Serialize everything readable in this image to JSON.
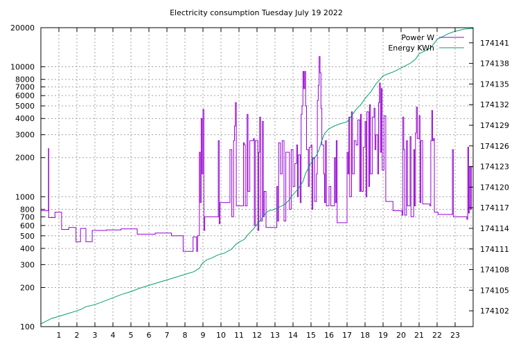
{
  "chart_data": {
    "type": "line",
    "title": "Electricity consumption Tuesday July 19 2022",
    "xlabel": "",
    "ylabel": "",
    "y2label": "",
    "grid": true,
    "legend_position": "top-right",
    "x_range": [
      0,
      24
    ],
    "x_ticks": [
      1,
      2,
      3,
      4,
      5,
      6,
      7,
      8,
      9,
      10,
      11,
      12,
      13,
      14,
      15,
      16,
      17,
      18,
      19,
      20,
      21,
      22,
      23
    ],
    "y_scale": "log",
    "y_range": [
      100,
      20000
    ],
    "y_ticks": [
      100,
      200,
      300,
      400,
      500,
      600,
      700,
      800,
      1000,
      2000,
      3000,
      4000,
      5000,
      6000,
      7000,
      8000,
      10000,
      20000
    ],
    "y2_range": [
      174099.7,
      174143.2
    ],
    "y2_ticks": [
      174102,
      174105,
      174108,
      174111,
      174114,
      174117,
      174120,
      174123,
      174126,
      174129,
      174132,
      174135,
      174138,
      174141
    ],
    "series": [
      {
        "name": "Power W",
        "color": "#9400d3",
        "axis": "y",
        "points": [
          [
            0.0,
            780
          ],
          [
            0.4,
            780
          ],
          [
            0.42,
            2350
          ],
          [
            0.44,
            690
          ],
          [
            0.75,
            690
          ],
          [
            0.78,
            760
          ],
          [
            1.1,
            760
          ],
          [
            1.15,
            560
          ],
          [
            1.5,
            560
          ],
          [
            1.55,
            580
          ],
          [
            1.9,
            580
          ],
          [
            1.95,
            450
          ],
          [
            2.15,
            450
          ],
          [
            2.2,
            570
          ],
          [
            2.45,
            570
          ],
          [
            2.5,
            450
          ],
          [
            2.8,
            450
          ],
          [
            2.85,
            550
          ],
          [
            3.6,
            550
          ],
          [
            3.65,
            555
          ],
          [
            4.4,
            555
          ],
          [
            4.45,
            565
          ],
          [
            5.3,
            565
          ],
          [
            5.35,
            515
          ],
          [
            6.3,
            515
          ],
          [
            6.35,
            525
          ],
          [
            7.2,
            525
          ],
          [
            7.25,
            500
          ],
          [
            7.85,
            500
          ],
          [
            7.9,
            380
          ],
          [
            8.4,
            380
          ],
          [
            8.45,
            490
          ],
          [
            8.6,
            490
          ],
          [
            8.65,
            380
          ],
          [
            8.7,
            500
          ],
          [
            8.8,
            2200
          ],
          [
            8.85,
            900
          ],
          [
            8.9,
            4000
          ],
          [
            8.95,
            1500
          ],
          [
            9.0,
            4700
          ],
          [
            9.05,
            550
          ],
          [
            9.1,
            700
          ],
          [
            9.8,
            700
          ],
          [
            9.85,
            2700
          ],
          [
            9.9,
            620
          ],
          [
            9.95,
            900
          ],
          [
            10.4,
            900
          ],
          [
            10.5,
            2300
          ],
          [
            10.6,
            700
          ],
          [
            10.7,
            2700
          ],
          [
            10.75,
            3500
          ],
          [
            10.8,
            5300
          ],
          [
            10.85,
            850
          ],
          [
            11.2,
            850
          ],
          [
            11.25,
            2600
          ],
          [
            11.3,
            2500
          ],
          [
            11.35,
            850
          ],
          [
            11.45,
            4300
          ],
          [
            11.5,
            1100
          ],
          [
            11.6,
            2700
          ],
          [
            11.8,
            2800
          ],
          [
            11.85,
            600
          ],
          [
            11.9,
            2700
          ],
          [
            12.0,
            2700
          ],
          [
            12.05,
            550
          ],
          [
            12.1,
            2200
          ],
          [
            12.15,
            4100
          ],
          [
            12.2,
            650
          ],
          [
            12.3,
            3800
          ],
          [
            12.35,
            700
          ],
          [
            12.4,
            1100
          ],
          [
            12.5,
            580
          ],
          [
            13.05,
            580
          ],
          [
            13.1,
            1200
          ],
          [
            13.15,
            650
          ],
          [
            13.2,
            2600
          ],
          [
            13.3,
            1500
          ],
          [
            13.4,
            2700
          ],
          [
            13.5,
            650
          ],
          [
            13.6,
            2200
          ],
          [
            13.7,
            2200
          ],
          [
            13.8,
            800
          ],
          [
            13.9,
            2300
          ],
          [
            14.0,
            1200
          ],
          [
            14.1,
            1800
          ],
          [
            14.2,
            2500
          ],
          [
            14.25,
            1000
          ],
          [
            14.3,
            2100
          ],
          [
            14.4,
            900
          ],
          [
            14.45,
            4300
          ],
          [
            14.5,
            5000
          ],
          [
            14.55,
            9200
          ],
          [
            14.6,
            6800
          ],
          [
            14.65,
            9200
          ],
          [
            14.7,
            5000
          ],
          [
            14.75,
            2300
          ],
          [
            14.85,
            1200
          ],
          [
            14.9,
            2400
          ],
          [
            15.0,
            2500
          ],
          [
            15.05,
            800
          ],
          [
            15.1,
            2000
          ],
          [
            15.2,
            920
          ],
          [
            15.3,
            1500
          ],
          [
            15.35,
            5500
          ],
          [
            15.4,
            7200
          ],
          [
            15.45,
            12000
          ],
          [
            15.5,
            9000
          ],
          [
            15.55,
            4800
          ],
          [
            15.6,
            2500
          ],
          [
            15.7,
            1500
          ],
          [
            15.75,
            900
          ],
          [
            15.8,
            2700
          ],
          [
            15.85,
            850
          ],
          [
            16.0,
            1200
          ],
          [
            16.1,
            850
          ],
          [
            16.3,
            2000
          ],
          [
            16.35,
            900
          ],
          [
            16.4,
            2700
          ],
          [
            16.45,
            630
          ],
          [
            16.9,
            630
          ],
          [
            17.0,
            2200
          ],
          [
            17.05,
            1500
          ],
          [
            17.1,
            4100
          ],
          [
            17.15,
            1000
          ],
          [
            17.25,
            4500
          ],
          [
            17.3,
            1500
          ],
          [
            17.4,
            2700
          ],
          [
            17.5,
            2500
          ],
          [
            17.6,
            3900
          ],
          [
            17.7,
            1100
          ],
          [
            17.75,
            4300
          ],
          [
            17.8,
            1100
          ],
          [
            17.9,
            2400
          ],
          [
            18.0,
            3800
          ],
          [
            18.05,
            1000
          ],
          [
            18.1,
            4500
          ],
          [
            18.2,
            1200
          ],
          [
            18.25,
            5100
          ],
          [
            18.3,
            1500
          ],
          [
            18.4,
            4100
          ],
          [
            18.5,
            4800
          ],
          [
            18.55,
            2300
          ],
          [
            18.6,
            3000
          ],
          [
            18.7,
            1500
          ],
          [
            18.75,
            5300
          ],
          [
            18.8,
            7500
          ],
          [
            18.85,
            2200
          ],
          [
            18.9,
            6800
          ],
          [
            18.95,
            1600
          ],
          [
            19.05,
            4200
          ],
          [
            19.15,
            920
          ],
          [
            19.5,
            920
          ],
          [
            19.55,
            780
          ],
          [
            20.0,
            780
          ],
          [
            20.05,
            720
          ],
          [
            20.1,
            4100
          ],
          [
            20.15,
            2300
          ],
          [
            20.2,
            720
          ],
          [
            20.3,
            2700
          ],
          [
            20.35,
            850
          ],
          [
            20.5,
            2900
          ],
          [
            20.55,
            700
          ],
          [
            20.7,
            2300
          ],
          [
            20.75,
            850
          ],
          [
            20.8,
            3100
          ],
          [
            20.85,
            4900
          ],
          [
            20.9,
            2800
          ],
          [
            21.0,
            4200
          ],
          [
            21.05,
            900
          ],
          [
            21.1,
            2700
          ],
          [
            21.2,
            880
          ],
          [
            21.6,
            850
          ],
          [
            21.65,
            2700
          ],
          [
            21.7,
            4600
          ],
          [
            21.75,
            2700
          ],
          [
            21.8,
            2800
          ],
          [
            21.85,
            760
          ],
          [
            22.0,
            760
          ],
          [
            22.05,
            730
          ],
          [
            22.8,
            730
          ],
          [
            22.85,
            2300
          ],
          [
            22.9,
            700
          ],
          [
            23.6,
            700
          ],
          [
            23.65,
            670
          ],
          [
            23.7,
            2400
          ],
          [
            23.75,
            750
          ],
          [
            23.8,
            1700
          ],
          [
            23.85,
            800
          ],
          [
            23.9,
            1700
          ],
          [
            24.0,
            1700
          ]
        ]
      },
      {
        "name": "Energy KWh",
        "color": "#009e73",
        "axis": "y2",
        "points": [
          [
            0.0,
            174100.1
          ],
          [
            0.3,
            174100.5
          ],
          [
            0.6,
            174100.9
          ],
          [
            1.0,
            174101.2
          ],
          [
            1.5,
            174101.6
          ],
          [
            2.0,
            174102.0
          ],
          [
            2.3,
            174102.3
          ],
          [
            2.5,
            174102.6
          ],
          [
            3.0,
            174102.9
          ],
          [
            3.5,
            174103.4
          ],
          [
            4.0,
            174103.9
          ],
          [
            4.5,
            174104.4
          ],
          [
            5.0,
            174104.8
          ],
          [
            5.5,
            174105.3
          ],
          [
            6.0,
            174105.7
          ],
          [
            6.5,
            174106.1
          ],
          [
            7.0,
            174106.5
          ],
          [
            7.5,
            174106.9
          ],
          [
            8.0,
            174107.3
          ],
          [
            8.5,
            174107.7
          ],
          [
            8.8,
            174108.2
          ],
          [
            9.0,
            174109.0
          ],
          [
            9.2,
            174109.4
          ],
          [
            9.5,
            174109.7
          ],
          [
            9.8,
            174110.1
          ],
          [
            10.2,
            174110.4
          ],
          [
            10.6,
            174111.0
          ],
          [
            10.8,
            174111.6
          ],
          [
            11.0,
            174112.0
          ],
          [
            11.3,
            174112.4
          ],
          [
            11.5,
            174113.1
          ],
          [
            11.8,
            174113.9
          ],
          [
            12.0,
            174114.6
          ],
          [
            12.2,
            174115.2
          ],
          [
            12.4,
            174115.9
          ],
          [
            12.6,
            174116.5
          ],
          [
            12.9,
            174116.7
          ],
          [
            13.1,
            174116.9
          ],
          [
            13.4,
            174117.3
          ],
          [
            13.6,
            174117.6
          ],
          [
            13.8,
            174118.2
          ],
          [
            14.0,
            174118.9
          ],
          [
            14.3,
            174119.8
          ],
          [
            14.55,
            174120.8
          ],
          [
            14.7,
            174122.0
          ],
          [
            14.9,
            174123.0
          ],
          [
            15.1,
            174124.0
          ],
          [
            15.3,
            174124.6
          ],
          [
            15.45,
            174125.5
          ],
          [
            15.6,
            174126.8
          ],
          [
            15.75,
            174127.8
          ],
          [
            16.0,
            174128.5
          ],
          [
            16.3,
            174128.9
          ],
          [
            16.6,
            174129.2
          ],
          [
            17.0,
            174129.5
          ],
          [
            17.2,
            174130.2
          ],
          [
            17.5,
            174131.3
          ],
          [
            17.8,
            174132.1
          ],
          [
            18.0,
            174132.9
          ],
          [
            18.3,
            174133.8
          ],
          [
            18.6,
            174135.0
          ],
          [
            19.0,
            174136.2
          ],
          [
            19.3,
            174136.5
          ],
          [
            19.6,
            174136.8
          ],
          [
            19.9,
            174137.2
          ],
          [
            20.2,
            174137.6
          ],
          [
            20.5,
            174138.0
          ],
          [
            20.8,
            174138.6
          ],
          [
            21.0,
            174139.4
          ],
          [
            21.3,
            174139.8
          ],
          [
            21.6,
            174140.2
          ],
          [
            21.8,
            174140.8
          ],
          [
            22.0,
            174141.5
          ],
          [
            22.3,
            174141.9
          ],
          [
            22.6,
            174142.3
          ],
          [
            22.9,
            174142.6
          ],
          [
            23.2,
            174142.8
          ],
          [
            23.5,
            174143.0
          ],
          [
            24.0,
            174143.1
          ]
        ]
      }
    ]
  }
}
